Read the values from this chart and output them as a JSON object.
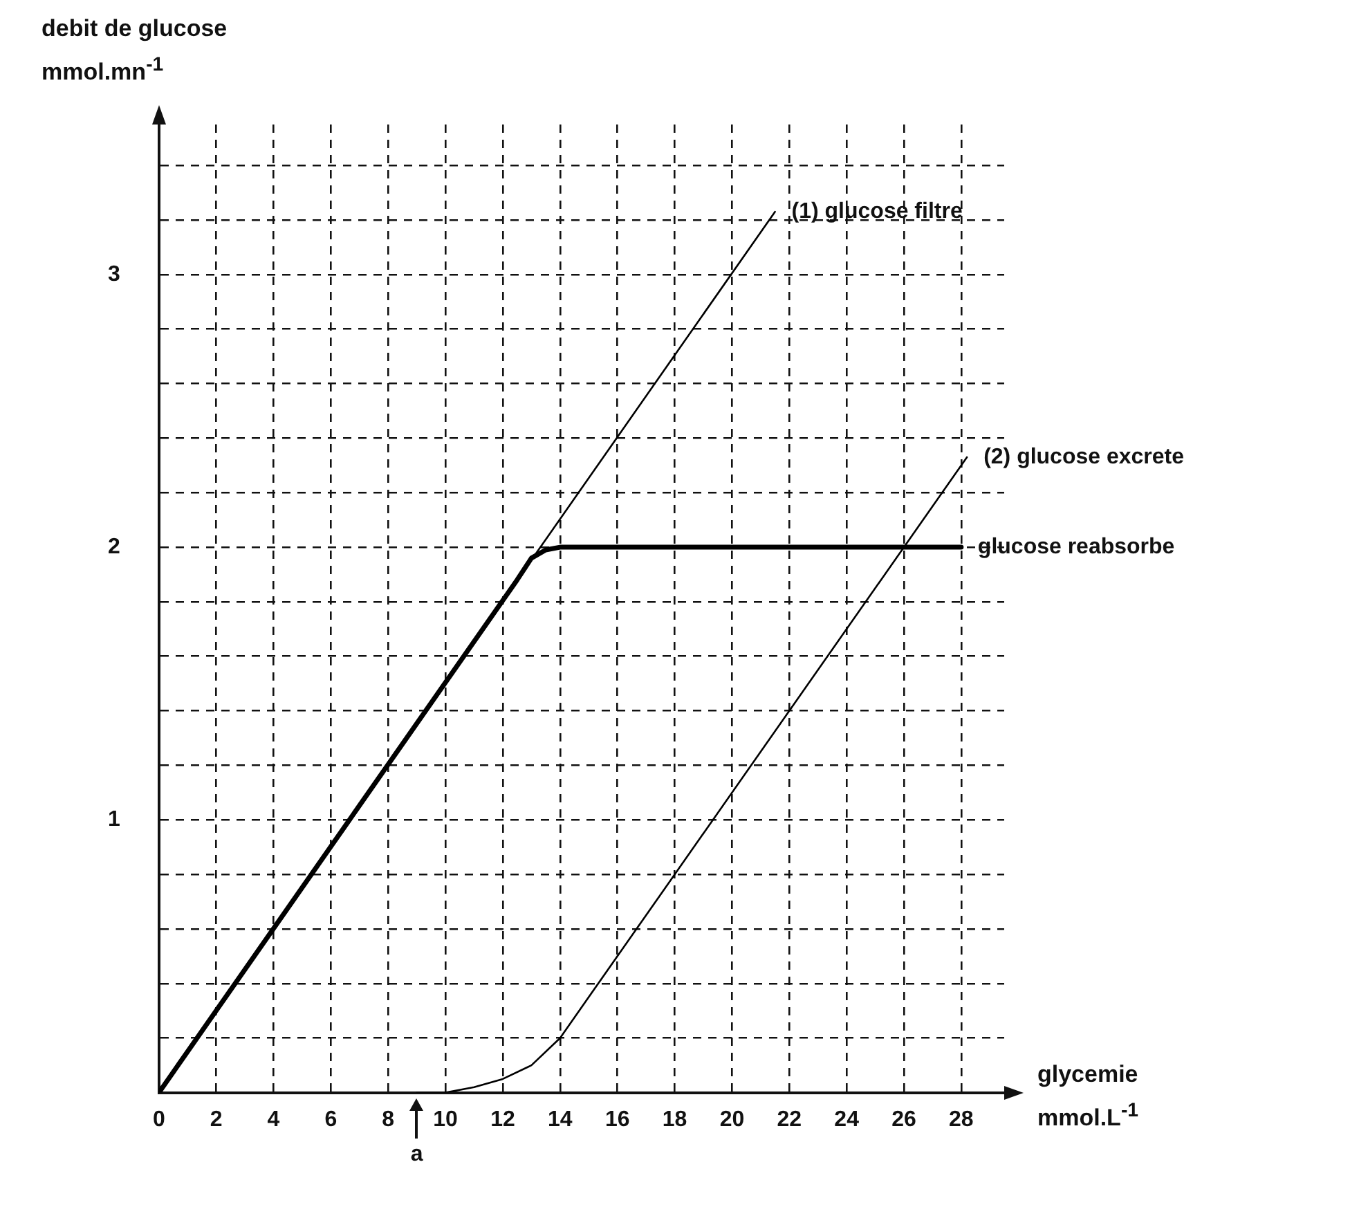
{
  "chart_data": {
    "type": "line",
    "xlabel": "glycemie mmol.L$^{-1}$",
    "ylabel": "debit de glucose mmol.mn$^{-1}$",
    "xlim": [
      0,
      29.5
    ],
    "xticks": [
      0,
      2,
      4,
      6,
      8,
      10,
      12,
      14,
      16,
      18,
      20,
      22,
      24,
      26,
      28
    ],
    "ylim": [
      0,
      3.55
    ],
    "yticks": [
      {
        "value": 0.2,
        "label": null
      },
      {
        "value": 0.4,
        "label": null
      },
      {
        "value": 0.6,
        "label": null
      },
      {
        "value": 0.8,
        "label": null
      },
      1,
      {
        "value": 1.2,
        "label": null
      },
      {
        "value": 1.4,
        "label": null
      },
      {
        "value": 1.6,
        "label": null
      },
      {
        "value": 1.8,
        "label": null
      },
      2,
      {
        "value": 2.2,
        "label": null
      },
      {
        "value": 2.4,
        "label": null
      },
      {
        "value": 2.6,
        "label": null
      },
      {
        "value": 2.8,
        "label": null
      },
      3,
      {
        "value": 3.2,
        "label": null
      },
      {
        "value": 3.4,
        "label": null
      }
    ],
    "grid": true,
    "legend": false,
    "marker": "none",
    "line_style": "solid",
    "series": [
      {
        "name": "(1) glucose filtre",
        "color": "#000000",
        "x": [
          0,
          21.5
        ],
        "values": [
          0,
          3.23
        ]
      },
      {
        "name": "glucose reabsorbe",
        "color": "#000000",
        "x": [
          0,
          12.5,
          13,
          13.5,
          14,
          28
        ],
        "values": [
          0,
          1.88,
          1.96,
          1.99,
          2,
          2
        ]
      },
      {
        "name": "(2) glucose excrete",
        "color": "#000000",
        "x": [
          9,
          10,
          11,
          12,
          13,
          14,
          15,
          28.2
        ],
        "values": [
          0,
          0,
          0.02,
          0.05,
          0.1,
          0.2,
          0.35,
          2.33
        ]
      }
    ],
    "annotations": [
      "a"
    ]
  }
}
